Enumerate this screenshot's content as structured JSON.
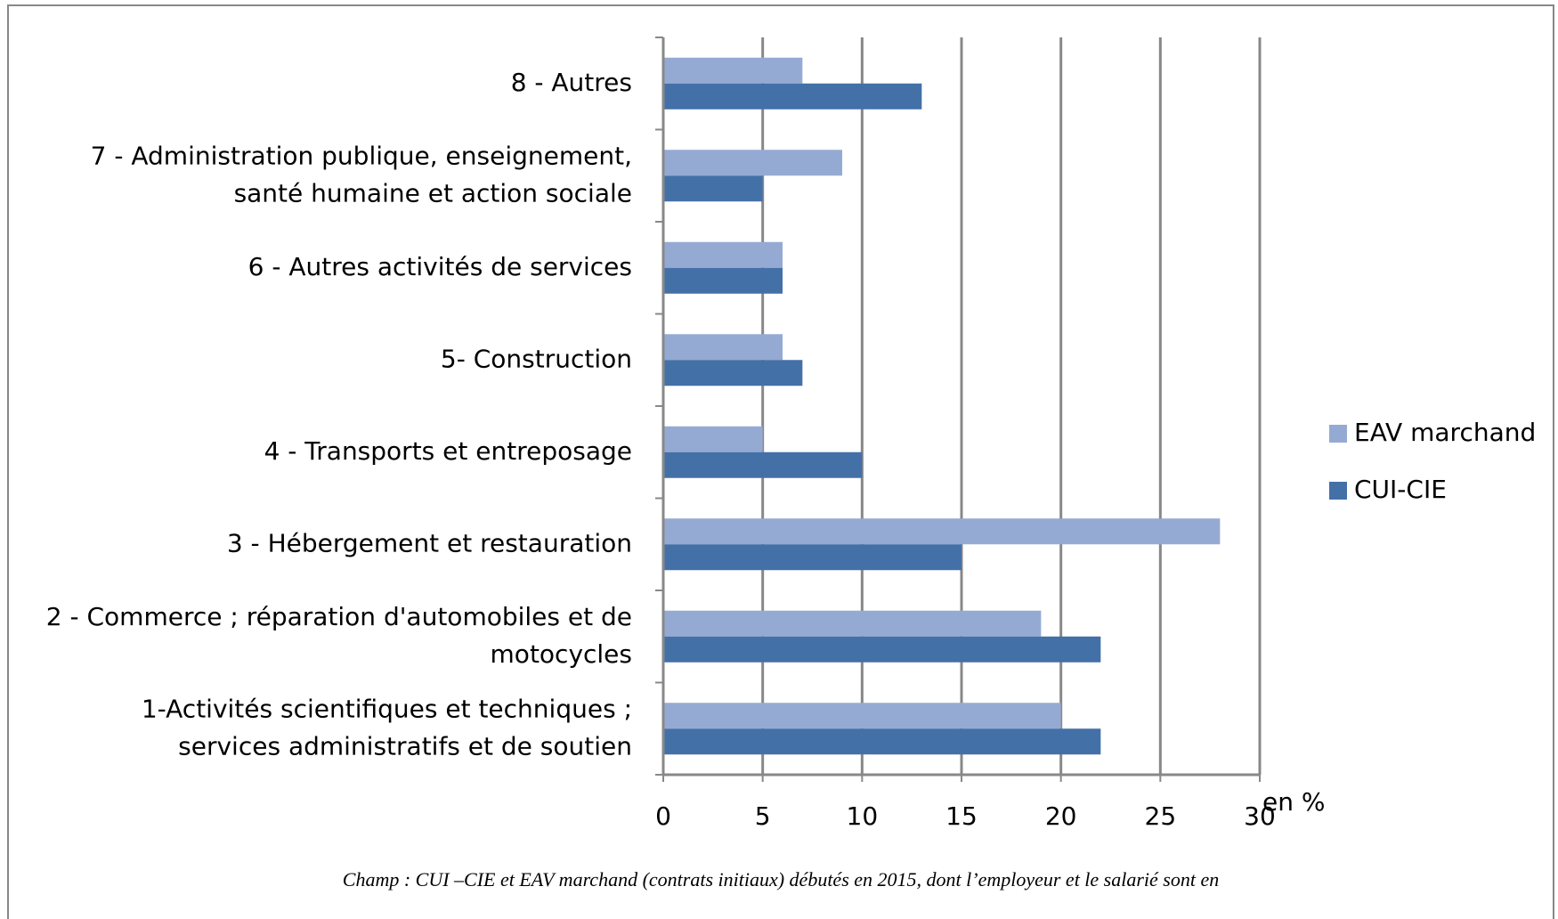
{
  "chart_data": {
    "type": "hbar",
    "categories": [
      "1-Activités scientifiques et techniques ;\nservices administratifs et de soutien",
      "2 - Commerce ; réparation d'automobiles et de\nmotocycles",
      "3 - Hébergement et restauration",
      "4 - Transports et entreposage",
      "5- Construction",
      "6 - Autres activités de services",
      "7 - Administration publique, enseignement,\nsanté humaine et action sociale",
      "8 - Autres"
    ],
    "series": [
      {
        "name": "EAV marchand",
        "color": "#95aad3",
        "values": [
          20,
          19,
          28,
          5,
          6,
          6,
          9,
          7
        ]
      },
      {
        "name": "CUI-CIE",
        "color": "#4470a8",
        "values": [
          22,
          22,
          15,
          10,
          7,
          6,
          5,
          13
        ]
      }
    ],
    "xlim": [
      0,
      30
    ],
    "xticks": [
      0,
      5,
      10,
      15,
      20,
      25,
      30
    ],
    "grid": true,
    "xlabel": "en %",
    "legend": "right",
    "caption": "Champ : CUI –CIE et EAV marchand (contrats initiaux) débutés en 2015, dont l’employeur et le salarié sont en"
  }
}
